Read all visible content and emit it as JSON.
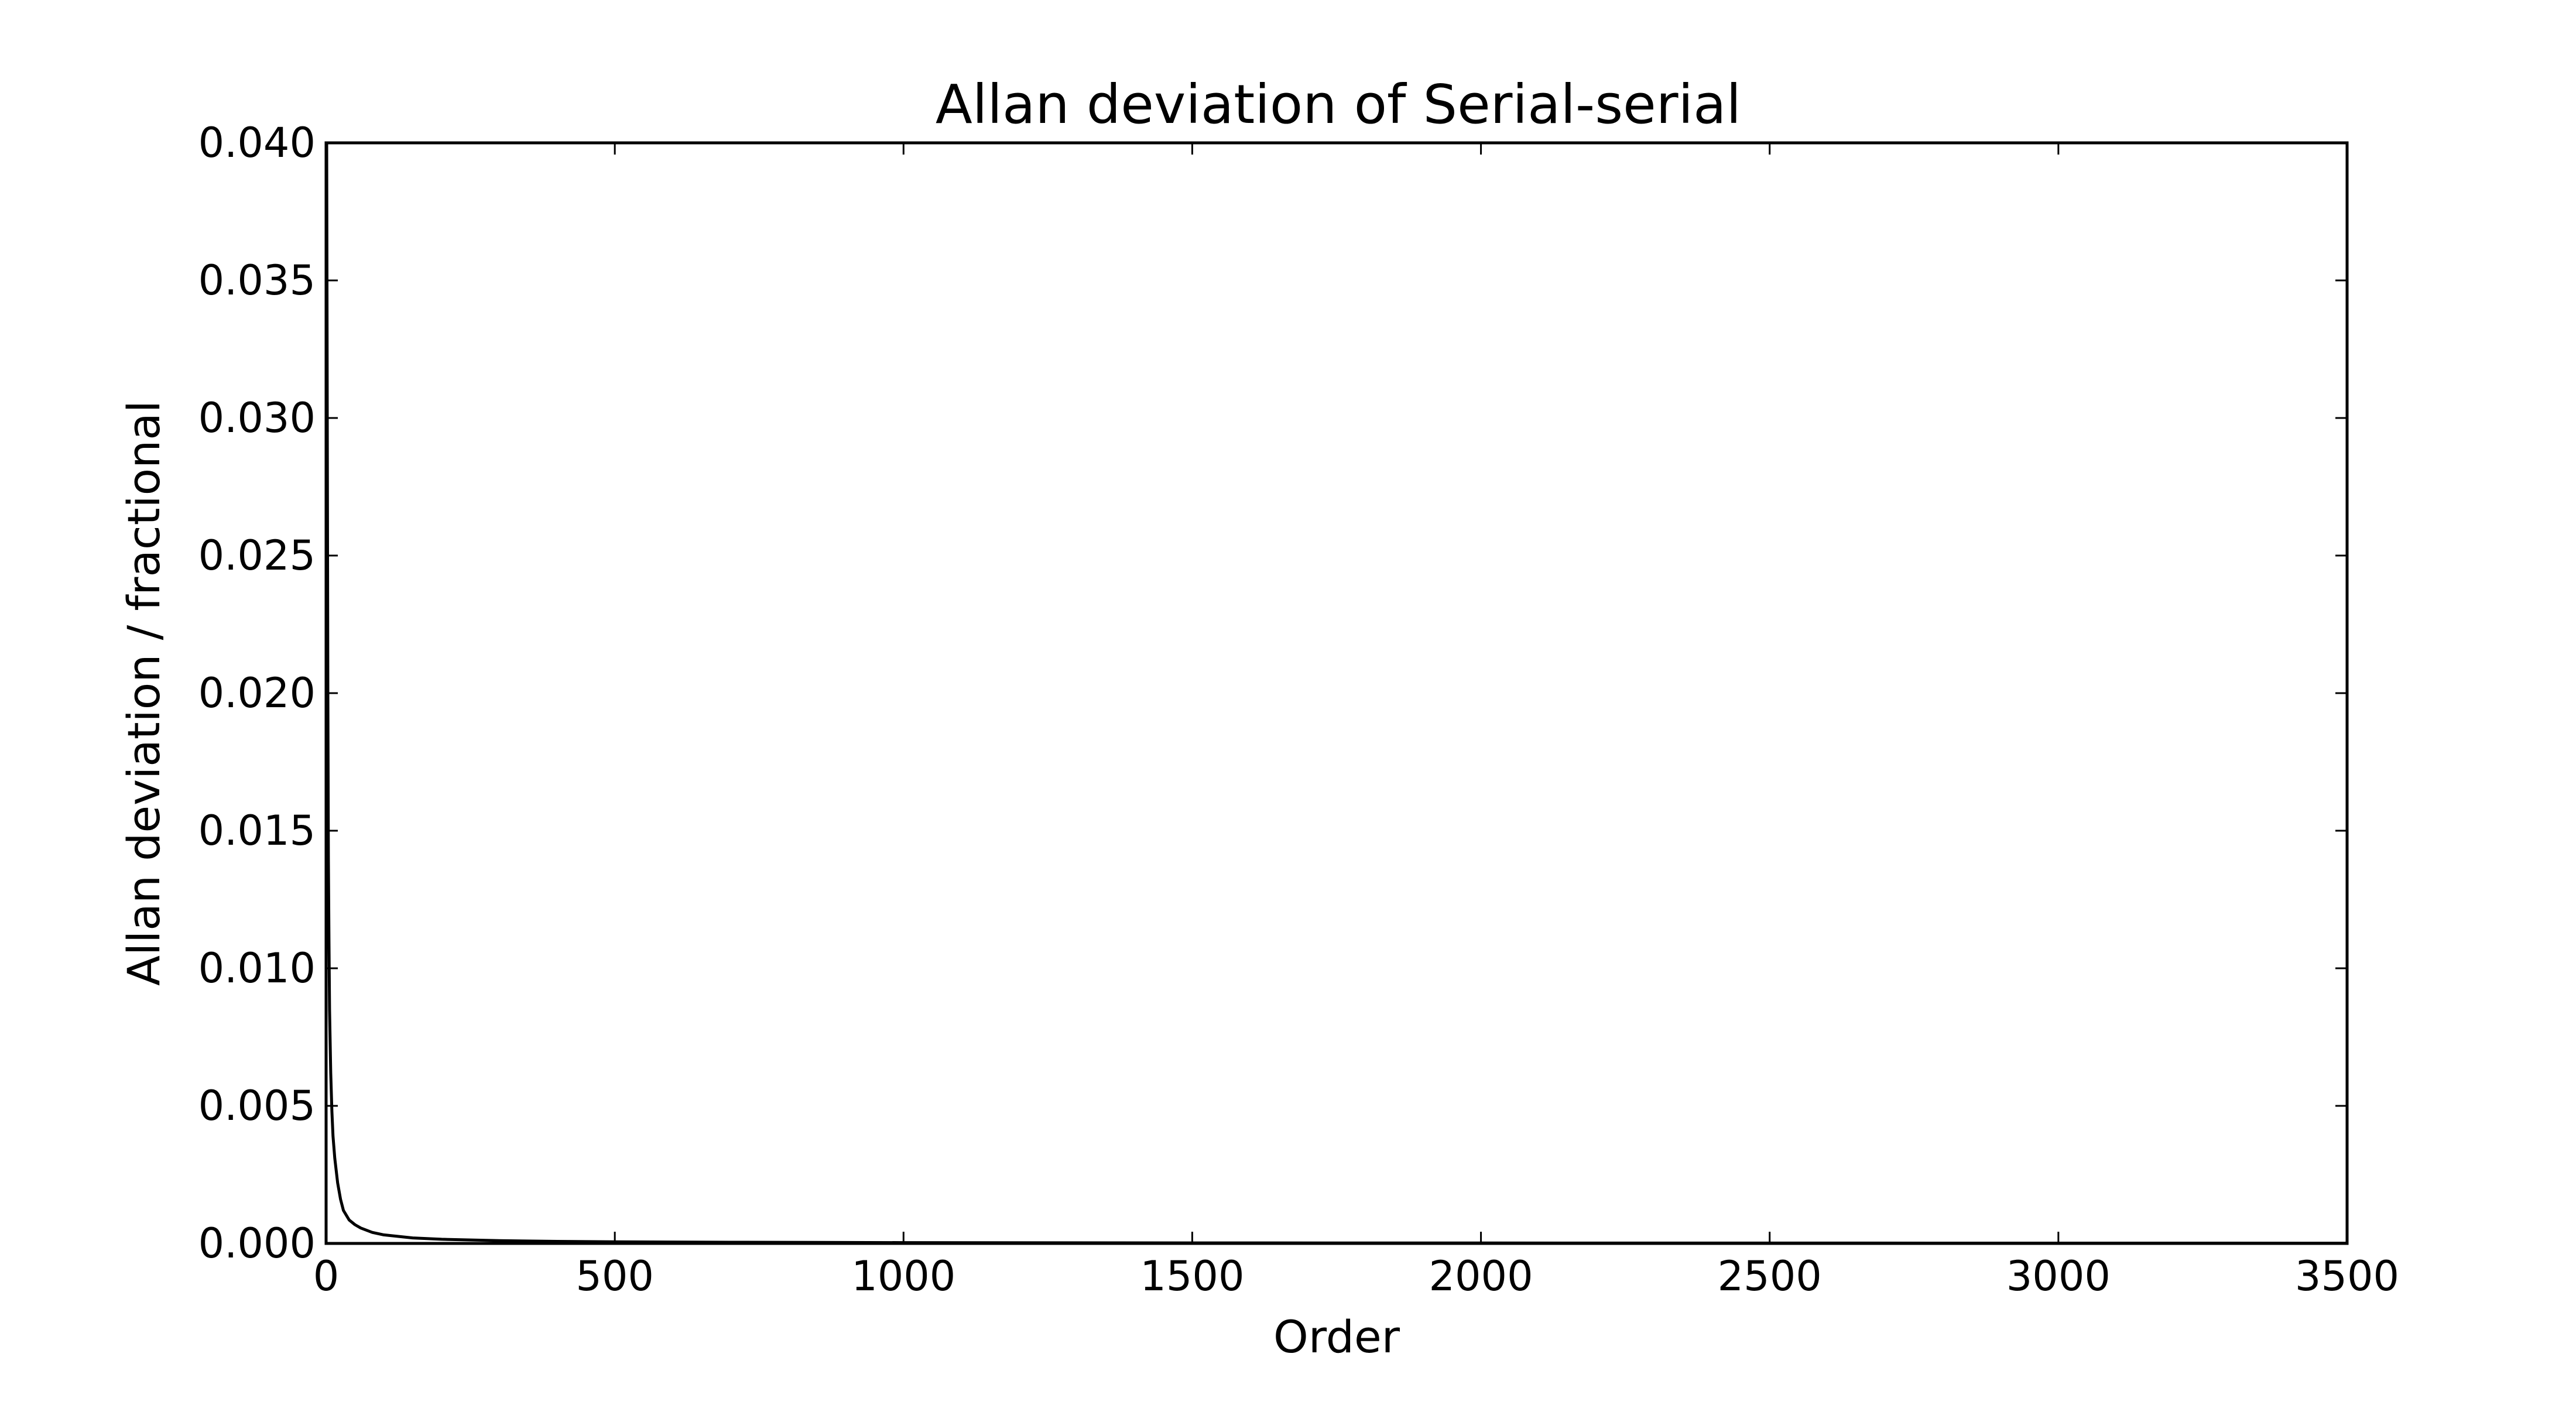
{
  "chart_data": {
    "type": "line",
    "title": "Allan deviation of Serial-serial",
    "xlabel": "Order",
    "ylabel": "Allan deviation / fractional",
    "xlim": [
      0,
      3500
    ],
    "ylim": [
      0.0,
      0.04
    ],
    "grid": false,
    "x_ticks": [
      "0",
      "500",
      "1000",
      "1500",
      "2000",
      "2500",
      "3000",
      "3500"
    ],
    "y_ticks": [
      "0.000",
      "0.005",
      "0.010",
      "0.015",
      "0.020",
      "0.025",
      "0.030",
      "0.035",
      "0.040"
    ],
    "series": [
      {
        "color": "#000000",
        "x": [
          1,
          2,
          3,
          4,
          5,
          6,
          8,
          10,
          12,
          15,
          20,
          25,
          30,
          40,
          50,
          60,
          80,
          100,
          150,
          200,
          300,
          400,
          500,
          700,
          1000,
          1500,
          2000,
          2500,
          3000,
          3500
        ],
        "y": [
          0.04,
          0.03,
          0.02,
          0.014,
          0.011,
          0.0085,
          0.0062,
          0.0048,
          0.0039,
          0.0031,
          0.0022,
          0.0016,
          0.0012,
          0.00085,
          0.00068,
          0.00056,
          0.0004,
          0.00031,
          0.0002,
          0.00015,
          0.0001,
          7.5e-05,
          6e-05,
          4.2e-05,
          3e-05,
          2e-05,
          1.5e-05,
          1.2e-05,
          1e-05,
          8e-06
        ]
      }
    ]
  }
}
